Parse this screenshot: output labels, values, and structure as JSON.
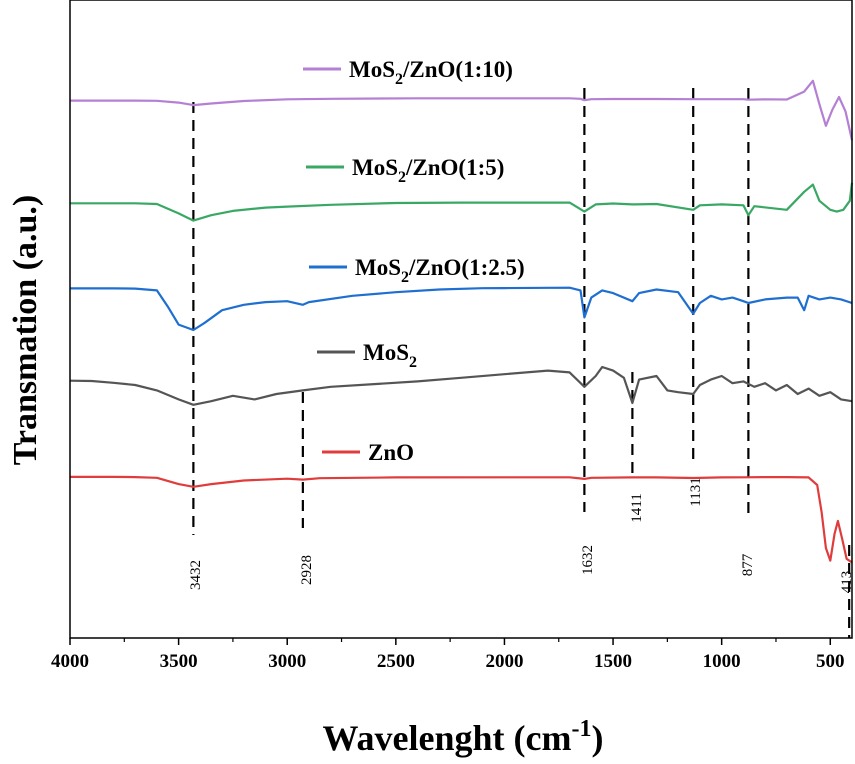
{
  "chart_data": {
    "type": "line",
    "title": "",
    "xlabel": "Wavelenght (cm",
    "xlabel_sup": "-1",
    "xlabel_end": ")",
    "ylabel": "Transmation (a.u.)",
    "xlim": [
      4000,
      400
    ],
    "x_reversed": true,
    "y_ticks_shown": false,
    "grid": false,
    "x_ticks": [
      {
        "value": 4000,
        "label": "4000"
      },
      {
        "value": 3500,
        "label": "3500"
      },
      {
        "value": 3000,
        "label": "3000"
      },
      {
        "value": 2500,
        "label": "2500"
      },
      {
        "value": 2000,
        "label": "2000"
      },
      {
        "value": 1500,
        "label": "1500"
      },
      {
        "value": 1000,
        "label": "1000"
      },
      {
        "value": 500,
        "label": "500"
      }
    ],
    "series": [
      {
        "name_main": "MoS",
        "name_sub": "2",
        "name_tail": "/ZnO(1:10)",
        "color": "#b57fd4",
        "points": [
          [
            4000,
            0.8
          ],
          [
            3800,
            0.8
          ],
          [
            3700,
            0.8
          ],
          [
            3600,
            0.79
          ],
          [
            3500,
            0.69
          ],
          [
            3432,
            0.55
          ],
          [
            3350,
            0.64
          ],
          [
            3200,
            0.78
          ],
          [
            3000,
            0.87
          ],
          [
            2800,
            0.9
          ],
          [
            2400,
            0.93
          ],
          [
            2000,
            0.93
          ],
          [
            1700,
            0.93
          ],
          [
            1650,
            0.9
          ],
          [
            1632,
            0.82
          ],
          [
            1600,
            0.88
          ],
          [
            1500,
            0.89
          ],
          [
            1300,
            0.89
          ],
          [
            1131,
            0.88
          ],
          [
            1000,
            0.88
          ],
          [
            900,
            0.88
          ],
          [
            877,
            0.85
          ],
          [
            800,
            0.87
          ],
          [
            700,
            0.86
          ],
          [
            620,
            1.3
          ],
          [
            580,
            1.9
          ],
          [
            550,
            0.6
          ],
          [
            520,
            -0.6
          ],
          [
            490,
            0.3
          ],
          [
            460,
            1.0
          ],
          [
            430,
            0.2
          ],
          [
            400,
            -1.4
          ]
        ]
      },
      {
        "name_main": "MoS",
        "name_sub": "2",
        "name_tail": "/ZnO(1:5)",
        "color": "#3aa865",
        "points": [
          [
            4000,
            0.76
          ],
          [
            3800,
            0.76
          ],
          [
            3700,
            0.76
          ],
          [
            3600,
            0.72
          ],
          [
            3500,
            0.2
          ],
          [
            3432,
            -0.2
          ],
          [
            3350,
            0.1
          ],
          [
            3250,
            0.34
          ],
          [
            3100,
            0.52
          ],
          [
            3000,
            0.58
          ],
          [
            2800,
            0.68
          ],
          [
            2500,
            0.78
          ],
          [
            2200,
            0.8
          ],
          [
            2000,
            0.8
          ],
          [
            1700,
            0.8
          ],
          [
            1632,
            0.3
          ],
          [
            1580,
            0.7
          ],
          [
            1500,
            0.75
          ],
          [
            1411,
            0.7
          ],
          [
            1300,
            0.72
          ],
          [
            1131,
            0.4
          ],
          [
            1100,
            0.65
          ],
          [
            1000,
            0.7
          ],
          [
            900,
            0.65
          ],
          [
            877,
            0.1
          ],
          [
            850,
            0.6
          ],
          [
            700,
            0.4
          ],
          [
            620,
            1.4
          ],
          [
            580,
            1.8
          ],
          [
            550,
            0.9
          ],
          [
            500,
            0.4
          ],
          [
            470,
            0.3
          ],
          [
            440,
            0.4
          ],
          [
            410,
            0.9
          ],
          [
            400,
            1.9
          ]
        ]
      },
      {
        "name_main": "MoS",
        "name_sub": "2",
        "name_tail": "/ZnO(1:2.5)",
        "color": "#1f6fd1",
        "points": [
          [
            4000,
            0.81
          ],
          [
            3800,
            0.81
          ],
          [
            3700,
            0.8
          ],
          [
            3600,
            0.7
          ],
          [
            3550,
            -0.2
          ],
          [
            3500,
            -1.2
          ],
          [
            3432,
            -1.5
          ],
          [
            3380,
            -1.1
          ],
          [
            3300,
            -0.4
          ],
          [
            3200,
            -0.1
          ],
          [
            3100,
            0.05
          ],
          [
            3000,
            0.1
          ],
          [
            2928,
            -0.1
          ],
          [
            2900,
            0.05
          ],
          [
            2700,
            0.4
          ],
          [
            2500,
            0.6
          ],
          [
            2300,
            0.75
          ],
          [
            2100,
            0.82
          ],
          [
            2000,
            0.83
          ],
          [
            1700,
            0.85
          ],
          [
            1650,
            0.7
          ],
          [
            1632,
            -0.8
          ],
          [
            1600,
            0.3
          ],
          [
            1550,
            0.7
          ],
          [
            1500,
            0.55
          ],
          [
            1411,
            0.1
          ],
          [
            1380,
            0.55
          ],
          [
            1300,
            0.75
          ],
          [
            1200,
            0.6
          ],
          [
            1131,
            -0.6
          ],
          [
            1100,
            0.0
          ],
          [
            1050,
            0.4
          ],
          [
            1000,
            0.2
          ],
          [
            950,
            0.3
          ],
          [
            900,
            0.1
          ],
          [
            877,
            0.0
          ],
          [
            800,
            0.2
          ],
          [
            700,
            0.3
          ],
          [
            650,
            0.3
          ],
          [
            620,
            -0.4
          ],
          [
            600,
            0.4
          ],
          [
            550,
            0.2
          ],
          [
            500,
            0.3
          ],
          [
            450,
            0.2
          ],
          [
            400,
            0.0
          ]
        ]
      },
      {
        "name_main": "MoS",
        "name_sub": "2",
        "name_tail": "",
        "color": "#555555",
        "points": [
          [
            4000,
            0.74
          ],
          [
            3900,
            0.72
          ],
          [
            3800,
            0.62
          ],
          [
            3700,
            0.5
          ],
          [
            3600,
            0.2
          ],
          [
            3500,
            -0.3
          ],
          [
            3432,
            -0.6
          ],
          [
            3350,
            -0.4
          ],
          [
            3250,
            -0.1
          ],
          [
            3150,
            -0.3
          ],
          [
            3050,
            0.0
          ],
          [
            2928,
            0.2
          ],
          [
            2800,
            0.4
          ],
          [
            2600,
            0.55
          ],
          [
            2400,
            0.7
          ],
          [
            2200,
            0.9
          ],
          [
            2000,
            1.1
          ],
          [
            1800,
            1.3
          ],
          [
            1700,
            1.2
          ],
          [
            1632,
            0.4
          ],
          [
            1580,
            1.0
          ],
          [
            1550,
            1.5
          ],
          [
            1500,
            1.3
          ],
          [
            1450,
            0.9
          ],
          [
            1411,
            -0.5
          ],
          [
            1380,
            0.8
          ],
          [
            1300,
            1.0
          ],
          [
            1250,
            0.2
          ],
          [
            1200,
            0.1
          ],
          [
            1131,
            0.0
          ],
          [
            1100,
            0.5
          ],
          [
            1050,
            0.8
          ],
          [
            1000,
            1.0
          ],
          [
            950,
            0.6
          ],
          [
            900,
            0.7
          ],
          [
            850,
            0.4
          ],
          [
            800,
            0.6
          ],
          [
            750,
            0.2
          ],
          [
            700,
            0.5
          ],
          [
            650,
            0.0
          ],
          [
            600,
            0.3
          ],
          [
            550,
            -0.1
          ],
          [
            500,
            0.1
          ],
          [
            450,
            -0.3
          ],
          [
            400,
            -0.4
          ]
        ]
      },
      {
        "name_main": "ZnO",
        "name_sub": "",
        "name_tail": "",
        "color": "#e03c3c",
        "points": [
          [
            4000,
            0.95
          ],
          [
            3800,
            0.95
          ],
          [
            3700,
            0.94
          ],
          [
            3600,
            0.9
          ],
          [
            3500,
            0.55
          ],
          [
            3432,
            0.4
          ],
          [
            3350,
            0.55
          ],
          [
            3200,
            0.75
          ],
          [
            3000,
            0.85
          ],
          [
            2928,
            0.8
          ],
          [
            2850,
            0.88
          ],
          [
            2500,
            0.92
          ],
          [
            2000,
            0.93
          ],
          [
            1700,
            0.93
          ],
          [
            1632,
            0.84
          ],
          [
            1600,
            0.9
          ],
          [
            1411,
            0.92
          ],
          [
            1300,
            0.92
          ],
          [
            1131,
            0.89
          ],
          [
            1000,
            0.92
          ],
          [
            900,
            0.93
          ],
          [
            800,
            0.94
          ],
          [
            700,
            0.94
          ],
          [
            600,
            0.92
          ],
          [
            560,
            0.5
          ],
          [
            540,
            -1.0
          ],
          [
            520,
            -3.0
          ],
          [
            500,
            -3.7
          ],
          [
            480,
            -2.2
          ],
          [
            465,
            -1.5
          ],
          [
            445,
            -2.5
          ],
          [
            425,
            -3.6
          ],
          [
            400,
            -3.8
          ]
        ]
      }
    ],
    "peaks": [
      {
        "x": 3432,
        "label": "3432"
      },
      {
        "x": 2928,
        "label": "2928"
      },
      {
        "x": 1632,
        "label": "1632"
      },
      {
        "x": 1411,
        "label": "1411"
      },
      {
        "x": 1131,
        "label": "1131"
      },
      {
        "x": 877,
        "label": "877"
      },
      {
        "x": 413,
        "label": "413"
      }
    ]
  }
}
